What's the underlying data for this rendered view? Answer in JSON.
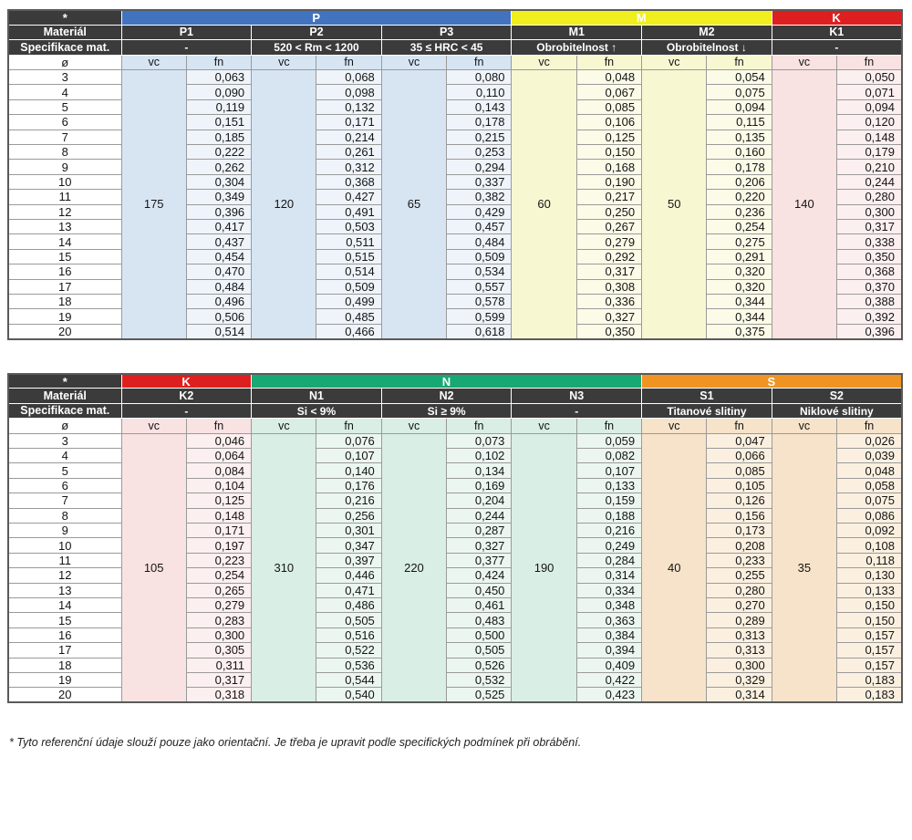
{
  "page": {
    "footnote": "* Tyto referenční údaje slouží pouze jako orientační. Je třeba je upravit podle specifických podmínek při obrábění."
  },
  "labels": {
    "star": "*",
    "material_row": "Materiál",
    "spec_row": "Specifikace mat.",
    "diameter_symbol": "ø",
    "vc": "vc",
    "fn": "fn"
  },
  "diameters": [
    "3",
    "4",
    "5",
    "6",
    "7",
    "8",
    "9",
    "10",
    "11",
    "12",
    "13",
    "14",
    "15",
    "16",
    "17",
    "18",
    "19",
    "20"
  ],
  "tables": [
    {
      "groups": [
        {
          "name": "P",
          "header_color": "#4273bf",
          "vc_tint": "#d7e5f3",
          "fn_tint": "#eef4fa",
          "columns": [
            {
              "material": "P1",
              "spec": "-",
              "vc": "175",
              "fn": [
                "0,063",
                "0,090",
                "0,119",
                "0,151",
                "0,185",
                "0,222",
                "0,262",
                "0,304",
                "0,349",
                "0,396",
                "0,417",
                "0,437",
                "0,454",
                "0,470",
                "0,484",
                "0,496",
                "0,506",
                "0,514"
              ]
            },
            {
              "material": "P2",
              "spec": "520 < Rm < 1200",
              "vc": "120",
              "fn": [
                "0,068",
                "0,098",
                "0,132",
                "0,171",
                "0,214",
                "0,261",
                "0,312",
                "0,368",
                "0,427",
                "0,491",
                "0,503",
                "0,511",
                "0,515",
                "0,514",
                "0,509",
                "0,499",
                "0,485",
                "0,466"
              ]
            },
            {
              "material": "P3",
              "spec": "35 ≤ HRC < 45",
              "vc": "65",
              "fn": [
                "0,080",
                "0,110",
                "0,143",
                "0,178",
                "0,215",
                "0,253",
                "0,294",
                "0,337",
                "0,382",
                "0,429",
                "0,457",
                "0,484",
                "0,509",
                "0,534",
                "0,557",
                "0,578",
                "0,599",
                "0,618"
              ]
            }
          ]
        },
        {
          "name": "M",
          "header_color": "#f0ee1c",
          "vc_tint": "#f7f7d2",
          "fn_tint": "#fbfbe8",
          "columns": [
            {
              "material": "M1",
              "spec": "Obrobitelnost ↑",
              "vc": "60",
              "fn": [
                "0,048",
                "0,067",
                "0,085",
                "0,106",
                "0,125",
                "0,150",
                "0,168",
                "0,190",
                "0,217",
                "0,250",
                "0,267",
                "0,279",
                "0,292",
                "0,317",
                "0,308",
                "0,336",
                "0,327",
                "0,350"
              ]
            },
            {
              "material": "M2",
              "spec": "Obrobitelnost ↓",
              "vc": "50",
              "fn": [
                "0,054",
                "0,075",
                "0,094",
                "0,115",
                "0,135",
                "0,160",
                "0,178",
                "0,206",
                "0,220",
                "0,236",
                "0,254",
                "0,275",
                "0,291",
                "0,320",
                "0,320",
                "0,344",
                "0,344",
                "0,375"
              ]
            }
          ]
        },
        {
          "name": "K",
          "header_color": "#de1f1f",
          "vc_tint": "#f9e2e2",
          "fn_tint": "#fcefef",
          "columns": [
            {
              "material": "K1",
              "spec": "-",
              "vc": "140",
              "fn": [
                "0,050",
                "0,071",
                "0,094",
                "0,120",
                "0,148",
                "0,179",
                "0,210",
                "0,244",
                "0,280",
                "0,300",
                "0,317",
                "0,338",
                "0,350",
                "0,368",
                "0,370",
                "0,388",
                "0,392",
                "0,396"
              ]
            }
          ]
        }
      ]
    },
    {
      "groups": [
        {
          "name": "K",
          "header_color": "#de1f1f",
          "vc_tint": "#f9e2e2",
          "fn_tint": "#fcefef",
          "columns": [
            {
              "material": "K2",
              "spec": "-",
              "vc": "105",
              "fn": [
                "0,046",
                "0,064",
                "0,084",
                "0,104",
                "0,125",
                "0,148",
                "0,171",
                "0,197",
                "0,223",
                "0,254",
                "0,265",
                "0,279",
                "0,283",
                "0,300",
                "0,305",
                "0,311",
                "0,317",
                "0,318"
              ]
            }
          ]
        },
        {
          "name": "N",
          "header_color": "#17a873",
          "vc_tint": "#d9eee4",
          "fn_tint": "#ecf6f1",
          "columns": [
            {
              "material": "N1",
              "spec": "Si < 9%",
              "vc": "310",
              "fn": [
                "0,076",
                "0,107",
                "0,140",
                "0,176",
                "0,216",
                "0,256",
                "0,301",
                "0,347",
                "0,397",
                "0,446",
                "0,471",
                "0,486",
                "0,505",
                "0,516",
                "0,522",
                "0,536",
                "0,544",
                "0,540"
              ]
            },
            {
              "material": "N2",
              "spec": "Si ≥ 9%",
              "vc": "220",
              "fn": [
                "0,073",
                "0,102",
                "0,134",
                "0,169",
                "0,204",
                "0,244",
                "0,287",
                "0,327",
                "0,377",
                "0,424",
                "0,450",
                "0,461",
                "0,483",
                "0,500",
                "0,505",
                "0,526",
                "0,532",
                "0,525"
              ]
            },
            {
              "material": "N3",
              "spec": "-",
              "vc": "190",
              "fn": [
                "0,059",
                "0,082",
                "0,107",
                "0,133",
                "0,159",
                "0,188",
                "0,216",
                "0,249",
                "0,284",
                "0,314",
                "0,334",
                "0,348",
                "0,363",
                "0,384",
                "0,394",
                "0,409",
                "0,422",
                "0,423"
              ]
            }
          ]
        },
        {
          "name": "S",
          "header_color": "#ef9322",
          "vc_tint": "#f6e3c9",
          "fn_tint": "#fbf0e0",
          "columns": [
            {
              "material": "S1",
              "spec": "Titanové slitiny",
              "vc": "40",
              "fn": [
                "0,047",
                "0,066",
                "0,085",
                "0,105",
                "0,126",
                "0,156",
                "0,173",
                "0,208",
                "0,233",
                "0,255",
                "0,280",
                "0,270",
                "0,289",
                "0,313",
                "0,313",
                "0,300",
                "0,329",
                "0,314"
              ]
            },
            {
              "material": "S2",
              "spec": "Niklové slitiny",
              "vc": "35",
              "fn": [
                "0,026",
                "0,039",
                "0,048",
                "0,058",
                "0,075",
                "0,086",
                "0,092",
                "0,108",
                "0,118",
                "0,130",
                "0,133",
                "0,150",
                "0,150",
                "0,157",
                "0,157",
                "0,157",
                "0,183",
                "0,183"
              ]
            }
          ]
        }
      ]
    }
  ]
}
